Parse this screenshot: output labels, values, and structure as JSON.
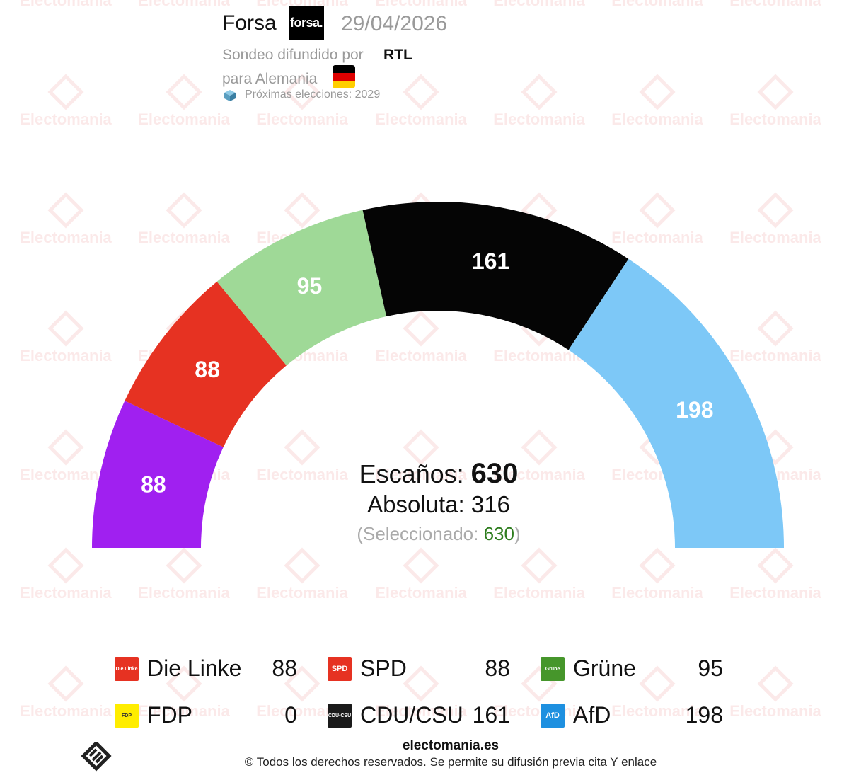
{
  "header": {
    "pollster": "Forsa",
    "pollster_logo_text": "forsa.",
    "date": "29/04/2026",
    "broadcast_prefix": "Sondeo difundido por",
    "media": "RTL",
    "country_text": "para Alemania",
    "next_elections": "Próximas elecciones: 2029"
  },
  "watermark": {
    "text": "Electomania"
  },
  "center": {
    "seats_label": "Escaños:",
    "seats_value": "630",
    "absolute_label": "Absoluta: 316",
    "selected_open": "(Seleccionado: ",
    "selected_value": "630",
    "selected_close": ")"
  },
  "chart_data": {
    "type": "pie",
    "subtype": "hemicycle",
    "total_seats": 630,
    "majority": 316,
    "series": [
      {
        "name": "Die Linke",
        "value": 88,
        "color": "#a020f0"
      },
      {
        "name": "SPD",
        "value": 88,
        "color": "#e63222"
      },
      {
        "name": "Grüne",
        "value": 95,
        "color": "#9fd997"
      },
      {
        "name": "CDU/CSU",
        "value": 161,
        "color": "#050505"
      },
      {
        "name": "AfD",
        "value": 198,
        "color": "#7dc8f7"
      }
    ],
    "legend": [
      {
        "name": "Die Linke",
        "value": "88",
        "logo_text": "Die Linke",
        "color": "#e63222"
      },
      {
        "name": "SPD",
        "value": "88",
        "logo_text": "SPD",
        "color": "#e63222"
      },
      {
        "name": "Grüne",
        "value": "95",
        "logo_text": "Grüne",
        "color": "#46962b"
      },
      {
        "name": "FDP",
        "value": "0",
        "logo_text": "FDP",
        "color": "#ffed00"
      },
      {
        "name": "CDU/CSU",
        "value": "161",
        "logo_text": "CDU·CSU",
        "color": "#1a1a1a"
      },
      {
        "name": "AfD",
        "value": "198",
        "logo_text": "AfD",
        "color": "#1e90e0"
      }
    ]
  },
  "footer": {
    "site": "electomania.es",
    "copyright": "© Todos los derechos reservados. Se permite su difusión previa cita Y enlace"
  }
}
